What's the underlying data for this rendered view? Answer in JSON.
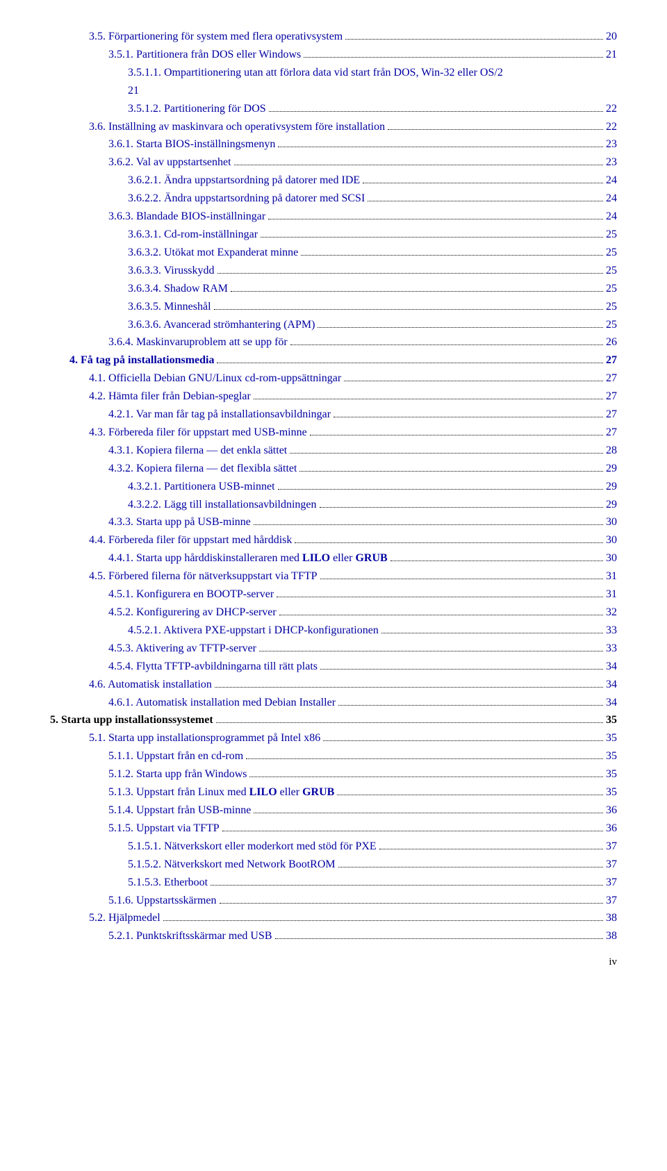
{
  "colors": {
    "link": "#0000a0",
    "text": "#000000",
    "bg": "#ffffff"
  },
  "page_footer": "iv",
  "entries": [
    {
      "indent": 2,
      "bold": false,
      "link": true,
      "label": "3.5. Förpartionering för system med flera operativsystem",
      "page": "20"
    },
    {
      "indent": 3,
      "bold": false,
      "link": true,
      "label": "3.5.1. Partitionera från DOS eller Windows",
      "page": "21"
    },
    {
      "indent": 4,
      "bold": false,
      "link": true,
      "label": "3.5.1.1. Ompartitionering utan att förlora data vid start från DOS, Win-32 eller OS/2",
      "page": "",
      "continuation": "21"
    },
    {
      "indent": 4,
      "bold": false,
      "link": true,
      "label": "3.5.1.2. Partitionering för DOS",
      "page": "22"
    },
    {
      "indent": 2,
      "bold": false,
      "link": true,
      "label": "3.6. Inställning av maskinvara och operativsystem före installation",
      "page": "22"
    },
    {
      "indent": 3,
      "bold": false,
      "link": true,
      "label": "3.6.1. Starta BIOS-inställningsmenyn",
      "page": "23"
    },
    {
      "indent": 3,
      "bold": false,
      "link": true,
      "label": "3.6.2. Val av uppstartsenhet",
      "page": "23"
    },
    {
      "indent": 4,
      "bold": false,
      "link": true,
      "label": "3.6.2.1. Ändra uppstartsordning på datorer med IDE",
      "page": "24"
    },
    {
      "indent": 4,
      "bold": false,
      "link": true,
      "label": "3.6.2.2. Ändra uppstartsordning på datorer med SCSI",
      "page": "24"
    },
    {
      "indent": 3,
      "bold": false,
      "link": true,
      "label": "3.6.3. Blandade BIOS-inställningar",
      "page": "24"
    },
    {
      "indent": 4,
      "bold": false,
      "link": true,
      "label": "3.6.3.1. Cd-rom-inställningar",
      "page": "25"
    },
    {
      "indent": 4,
      "bold": false,
      "link": true,
      "label": "3.6.3.2. Utökat mot Expanderat minne",
      "page": "25"
    },
    {
      "indent": 4,
      "bold": false,
      "link": true,
      "label": "3.6.3.3. Virusskydd",
      "page": "25"
    },
    {
      "indent": 4,
      "bold": false,
      "link": true,
      "label": "3.6.3.4. Shadow RAM",
      "page": "25"
    },
    {
      "indent": 4,
      "bold": false,
      "link": true,
      "label": "3.6.3.5. Minneshål",
      "page": "25"
    },
    {
      "indent": 4,
      "bold": false,
      "link": true,
      "label": "3.6.3.6. Avancerad strömhantering (APM)",
      "page": "25"
    },
    {
      "indent": 3,
      "bold": false,
      "link": true,
      "label": "3.6.4. Maskinvaruproblem att se upp för",
      "page": "26"
    },
    {
      "indent": 1,
      "bold": true,
      "link": true,
      "label": "4. Få tag på installationsmedia",
      "page": "27"
    },
    {
      "indent": 2,
      "bold": false,
      "link": true,
      "label": "4.1. Officiella Debian GNU/Linux cd-rom-uppsättningar",
      "page": "27"
    },
    {
      "indent": 2,
      "bold": false,
      "link": true,
      "label": "4.2. Hämta filer från Debian-speglar",
      "page": "27"
    },
    {
      "indent": 3,
      "bold": false,
      "link": true,
      "label": "4.2.1. Var man får tag på installationsavbildningar",
      "page": "27"
    },
    {
      "indent": 2,
      "bold": false,
      "link": true,
      "label": "4.3. Förbereda filer för uppstart med USB-minne",
      "page": "27"
    },
    {
      "indent": 3,
      "bold": false,
      "link": true,
      "label": "4.3.1. Kopiera filerna — det enkla sättet",
      "page": "28"
    },
    {
      "indent": 3,
      "bold": false,
      "link": true,
      "label": "4.3.2. Kopiera filerna — det flexibla sättet",
      "page": "29"
    },
    {
      "indent": 4,
      "bold": false,
      "link": true,
      "label": "4.3.2.1. Partitionera USB-minnet",
      "page": "29"
    },
    {
      "indent": 4,
      "bold": false,
      "link": true,
      "label": "4.3.2.2. Lägg till installationsavbildningen",
      "page": "29"
    },
    {
      "indent": 3,
      "bold": false,
      "link": true,
      "label": "4.3.3. Starta upp på USB-minne",
      "page": "30"
    },
    {
      "indent": 2,
      "bold": false,
      "link": true,
      "label": "4.4. Förbereda filer för uppstart med hårddisk",
      "page": "30"
    },
    {
      "indent": 3,
      "bold": false,
      "link": true,
      "label_parts": [
        {
          "text": "4.4.1. Starta upp hårddiskinstalleraren med ",
          "bold": false
        },
        {
          "text": "LILO",
          "bold": true
        },
        {
          "text": " eller ",
          "bold": false
        },
        {
          "text": "GRUB",
          "bold": true
        }
      ],
      "page": "30"
    },
    {
      "indent": 2,
      "bold": false,
      "link": true,
      "label": "4.5. Förbered filerna för nätverksuppstart via TFTP",
      "page": "31"
    },
    {
      "indent": 3,
      "bold": false,
      "link": true,
      "label": "4.5.1. Konfigurera en BOOTP-server",
      "page": "31"
    },
    {
      "indent": 3,
      "bold": false,
      "link": true,
      "label": "4.5.2. Konfigurering av DHCP-server",
      "page": "32"
    },
    {
      "indent": 4,
      "bold": false,
      "link": true,
      "label": "4.5.2.1. Aktivera PXE-uppstart i DHCP-konfigurationen",
      "page": "33"
    },
    {
      "indent": 3,
      "bold": false,
      "link": true,
      "label": "4.5.3. Aktivering av TFTP-server",
      "page": "33"
    },
    {
      "indent": 3,
      "bold": false,
      "link": true,
      "label": "4.5.4. Flytta TFTP-avbildningarna till rätt plats",
      "page": "34"
    },
    {
      "indent": 2,
      "bold": false,
      "link": true,
      "label": "4.6. Automatisk installation",
      "page": "34"
    },
    {
      "indent": 3,
      "bold": false,
      "link": true,
      "label": "4.6.1. Automatisk installation med Debian Installer",
      "page": "34"
    },
    {
      "indent": 0,
      "bold": true,
      "link": false,
      "label": "5. Starta upp installationssystemet",
      "page": "35"
    },
    {
      "indent": 2,
      "bold": false,
      "link": true,
      "label": "5.1. Starta upp installationsprogrammet på Intel x86",
      "page": "35"
    },
    {
      "indent": 3,
      "bold": false,
      "link": true,
      "label": "5.1.1. Uppstart från en cd-rom",
      "page": "35"
    },
    {
      "indent": 3,
      "bold": false,
      "link": true,
      "label": "5.1.2. Starta upp från Windows",
      "page": "35"
    },
    {
      "indent": 3,
      "bold": false,
      "link": true,
      "label_parts": [
        {
          "text": "5.1.3. Uppstart från Linux med ",
          "bold": false
        },
        {
          "text": "LILO",
          "bold": true
        },
        {
          "text": " eller ",
          "bold": false
        },
        {
          "text": "GRUB",
          "bold": true
        }
      ],
      "page": "35"
    },
    {
      "indent": 3,
      "bold": false,
      "link": true,
      "label": "5.1.4. Uppstart från USB-minne",
      "page": "36"
    },
    {
      "indent": 3,
      "bold": false,
      "link": true,
      "label": "5.1.5. Uppstart via TFTP",
      "page": "36"
    },
    {
      "indent": 4,
      "bold": false,
      "link": true,
      "label": "5.1.5.1. Nätverkskort eller moderkort med stöd för PXE",
      "page": "37"
    },
    {
      "indent": 4,
      "bold": false,
      "link": true,
      "label": "5.1.5.2. Nätverkskort med Network BootROM",
      "page": "37"
    },
    {
      "indent": 4,
      "bold": false,
      "link": true,
      "label": "5.1.5.3. Etherboot",
      "page": "37"
    },
    {
      "indent": 3,
      "bold": false,
      "link": true,
      "label": "5.1.6. Uppstartsskärmen",
      "page": "37"
    },
    {
      "indent": 2,
      "bold": false,
      "link": true,
      "label": "5.2. Hjälpmedel",
      "page": "38"
    },
    {
      "indent": 3,
      "bold": false,
      "link": true,
      "label": "5.2.1. Punktskriftsskärmar med USB",
      "page": "38"
    }
  ]
}
